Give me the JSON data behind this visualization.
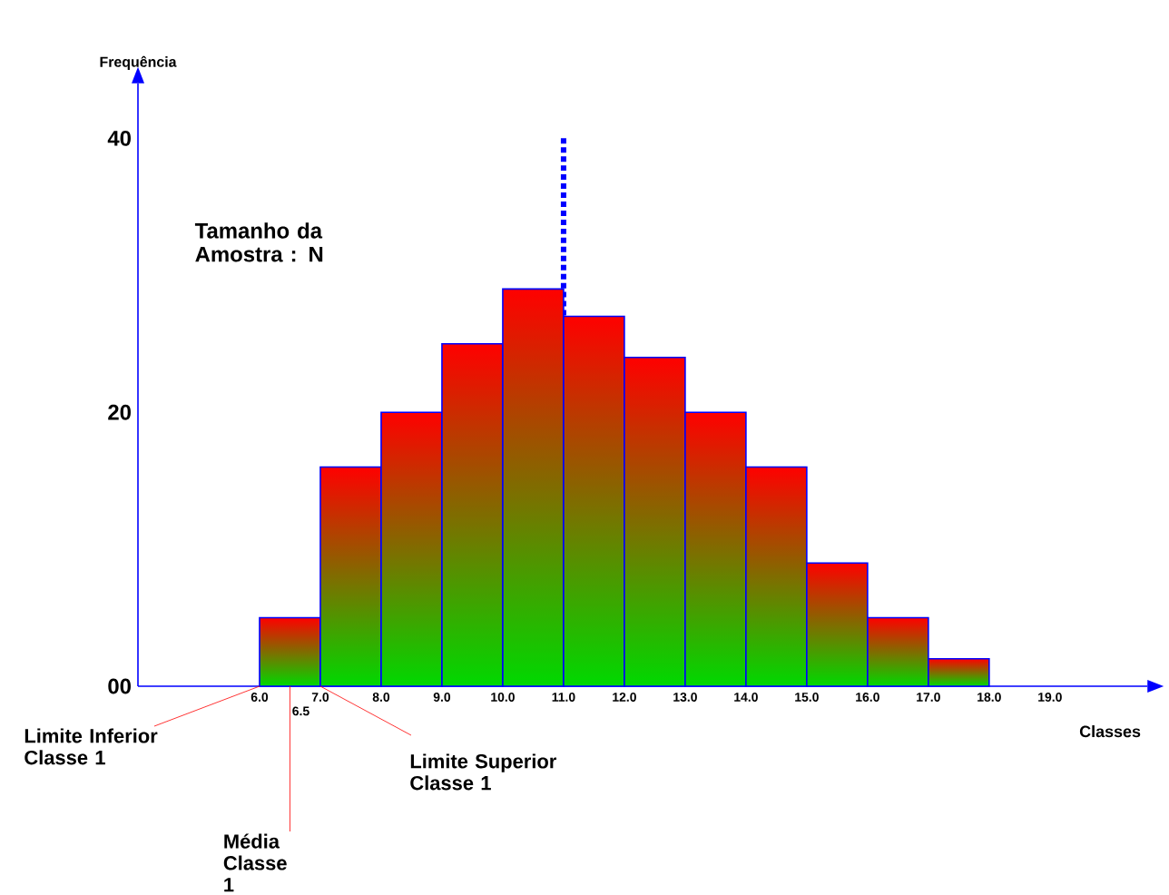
{
  "chart_data": {
    "type": "histogram",
    "xlabel": "Classes",
    "ylabel": "Frequência",
    "bins": [
      6,
      7,
      8,
      9,
      10,
      11,
      12,
      13,
      14,
      15,
      16,
      17,
      18
    ],
    "values": [
      5,
      16,
      20,
      25,
      29,
      27,
      24,
      20,
      16,
      9,
      5,
      2
    ],
    "color": "#ff0000",
    "xlim": [
      4,
      20.6
    ],
    "ylim": [
      0,
      44
    ],
    "xticks": [
      {
        "value": 6,
        "label": "6.0"
      },
      {
        "value": 7,
        "label": "7.0"
      },
      {
        "value": 8,
        "label": "8.0"
      },
      {
        "value": 9,
        "label": "9.0"
      },
      {
        "value": 10,
        "label": "10.0"
      },
      {
        "value": 11,
        "label": "11.0"
      },
      {
        "value": 12,
        "label": "12.0"
      },
      {
        "value": 13,
        "label": "13.0"
      },
      {
        "value": 14,
        "label": "14.0"
      },
      {
        "value": 15,
        "label": "15.0"
      },
      {
        "value": 16,
        "label": "16.0"
      },
      {
        "value": 17,
        "label": "17.0"
      },
      {
        "value": 18,
        "label": "18.0"
      },
      {
        "value": 19,
        "label": "19.0"
      }
    ],
    "yticks": [
      {
        "value": 0,
        "label": "00"
      },
      20,
      40
    ],
    "ref_lines": [
      {
        "axis": "x",
        "value": 11,
        "color": "#0000ff",
        "line_style": "dotted"
      }
    ],
    "annotations": [
      "Tamanho da Amostra :  N",
      {
        "text": "6.5",
        "x": 6.5,
        "y": 0
      },
      {
        "text": "Limite Inferior Classe  1",
        "x": 6,
        "y": 0
      },
      {
        "text": "Limite Superior Classe  1",
        "x": 7,
        "y": 0
      },
      {
        "text": "Média Classe  1",
        "x": 6.5,
        "y": 0
      }
    ],
    "grid": false
  }
}
